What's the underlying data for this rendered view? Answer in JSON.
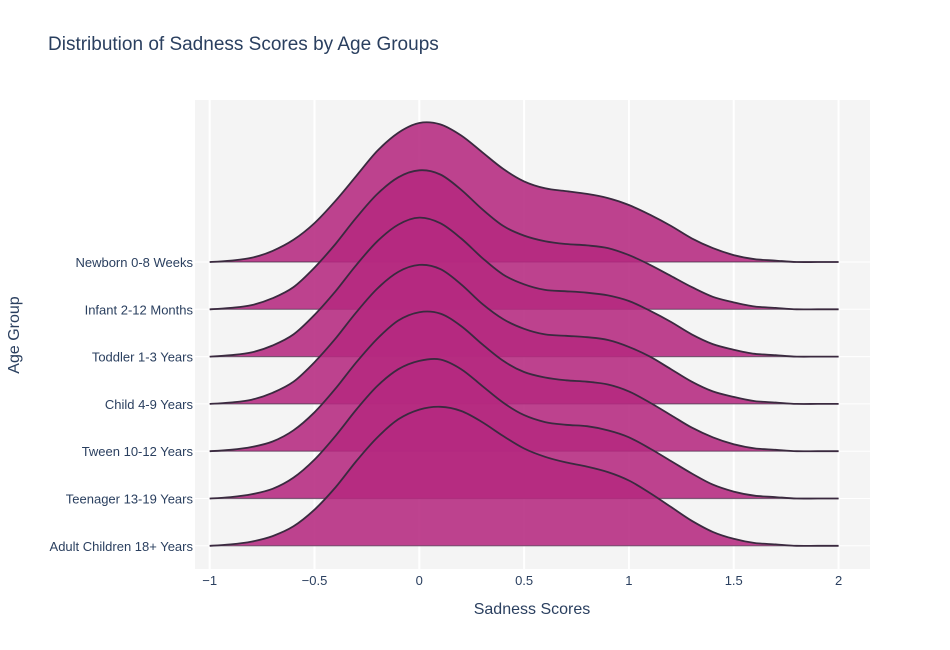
{
  "chart_data": {
    "type": "ridgeline",
    "title": "Distribution of Sadness Scores by Age Groups",
    "xlabel": "Sadness Scores",
    "ylabel": "Age Group",
    "xlim": [
      -1.07,
      2.15
    ],
    "x_ticks": [
      -1,
      -0.5,
      0,
      0.5,
      1,
      1.5,
      2
    ],
    "x_tick_labels": [
      "−1",
      "−0.5",
      "0",
      "0.5",
      "1",
      "1.5",
      "2"
    ],
    "grid": true,
    "colors": {
      "fill": "#b5297f",
      "fill_opacity": 0.88,
      "line": "#3a2a3f",
      "plot_bg": "#f4f4f4",
      "grid": "#ffffff"
    },
    "density_x": [
      -1,
      -0.9,
      -0.8,
      -0.7,
      -0.6,
      -0.5,
      -0.4,
      -0.3,
      -0.2,
      -0.1,
      0,
      0.1,
      0.2,
      0.3,
      0.4,
      0.5,
      0.6,
      0.7,
      0.8,
      0.9,
      1,
      1.1,
      1.2,
      1.3,
      1.4,
      1.5,
      1.6,
      1.7,
      1.8,
      1.9,
      2
    ],
    "series": [
      {
        "name": "Newborn 0-8 Weeks",
        "density": [
          0.0,
          0.01,
          0.03,
          0.08,
          0.16,
          0.28,
          0.44,
          0.62,
          0.8,
          0.93,
          1.0,
          0.99,
          0.91,
          0.79,
          0.67,
          0.58,
          0.53,
          0.51,
          0.49,
          0.46,
          0.41,
          0.34,
          0.26,
          0.17,
          0.1,
          0.05,
          0.02,
          0.01,
          0.0,
          0.0,
          0.0
        ]
      },
      {
        "name": "Infant 2-12 Months",
        "density": [
          0.0,
          0.01,
          0.03,
          0.08,
          0.16,
          0.3,
          0.47,
          0.66,
          0.83,
          0.95,
          1.0,
          0.97,
          0.86,
          0.72,
          0.6,
          0.53,
          0.49,
          0.47,
          0.46,
          0.44,
          0.39,
          0.32,
          0.24,
          0.16,
          0.09,
          0.05,
          0.02,
          0.01,
          0.0,
          0.0,
          0.0
        ]
      },
      {
        "name": "Toddler 1-3 Years",
        "density": [
          0.0,
          0.01,
          0.03,
          0.08,
          0.16,
          0.3,
          0.47,
          0.66,
          0.83,
          0.95,
          1.0,
          0.96,
          0.85,
          0.71,
          0.59,
          0.52,
          0.48,
          0.47,
          0.46,
          0.44,
          0.4,
          0.33,
          0.25,
          0.16,
          0.09,
          0.05,
          0.02,
          0.01,
          0.0,
          0.0,
          0.0
        ]
      },
      {
        "name": "Child 4-9 Years",
        "density": [
          0.0,
          0.01,
          0.03,
          0.08,
          0.16,
          0.3,
          0.47,
          0.66,
          0.83,
          0.95,
          1.0,
          0.97,
          0.86,
          0.72,
          0.61,
          0.54,
          0.5,
          0.49,
          0.48,
          0.46,
          0.41,
          0.34,
          0.25,
          0.16,
          0.09,
          0.05,
          0.02,
          0.01,
          0.0,
          0.0,
          0.0
        ]
      },
      {
        "name": "Tween 10-12 Years",
        "density": [
          0.0,
          0.01,
          0.03,
          0.07,
          0.15,
          0.28,
          0.45,
          0.64,
          0.81,
          0.94,
          1.0,
          0.99,
          0.9,
          0.77,
          0.65,
          0.57,
          0.53,
          0.51,
          0.5,
          0.48,
          0.43,
          0.35,
          0.26,
          0.17,
          0.1,
          0.05,
          0.02,
          0.01,
          0.0,
          0.0,
          0.0
        ]
      },
      {
        "name": "Teenager 13-19 Years",
        "density": [
          0.0,
          0.01,
          0.03,
          0.07,
          0.15,
          0.28,
          0.45,
          0.64,
          0.81,
          0.93,
          0.99,
          1.0,
          0.93,
          0.81,
          0.69,
          0.6,
          0.55,
          0.53,
          0.52,
          0.49,
          0.44,
          0.36,
          0.27,
          0.18,
          0.1,
          0.05,
          0.02,
          0.01,
          0.0,
          0.0,
          0.0
        ]
      },
      {
        "name": "Adult Children 18+ Years",
        "density": [
          0.0,
          0.01,
          0.03,
          0.07,
          0.14,
          0.26,
          0.42,
          0.61,
          0.78,
          0.91,
          0.98,
          1.0,
          0.97,
          0.89,
          0.79,
          0.7,
          0.64,
          0.6,
          0.57,
          0.53,
          0.47,
          0.38,
          0.28,
          0.18,
          0.1,
          0.05,
          0.02,
          0.01,
          0.0,
          0.0,
          0.0
        ]
      }
    ]
  }
}
